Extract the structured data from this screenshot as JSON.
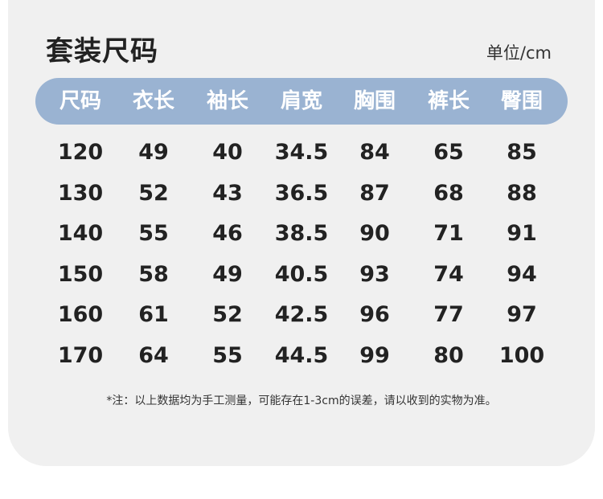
{
  "title": "套装尺码",
  "unit": "单位/cm",
  "header_color": "#9ab3d2",
  "columns": [
    "尺码",
    "衣长",
    "袖长",
    "肩宽",
    "胸围",
    "裤长",
    "臀围"
  ],
  "rows": [
    [
      "120",
      "49",
      "40",
      "34.5",
      "84",
      "65",
      "85"
    ],
    [
      "130",
      "52",
      "43",
      "36.5",
      "87",
      "68",
      "88"
    ],
    [
      "140",
      "55",
      "46",
      "38.5",
      "90",
      "71",
      "91"
    ],
    [
      "150",
      "58",
      "49",
      "40.5",
      "93",
      "74",
      "94"
    ],
    [
      "160",
      "61",
      "52",
      "42.5",
      "96",
      "77",
      "97"
    ],
    [
      "170",
      "64",
      "55",
      "44.5",
      "99",
      "80",
      "100"
    ]
  ],
  "note": "*注：以上数据均为手工测量，可能存在1-3cm的误差，请以收到的实物为准。"
}
